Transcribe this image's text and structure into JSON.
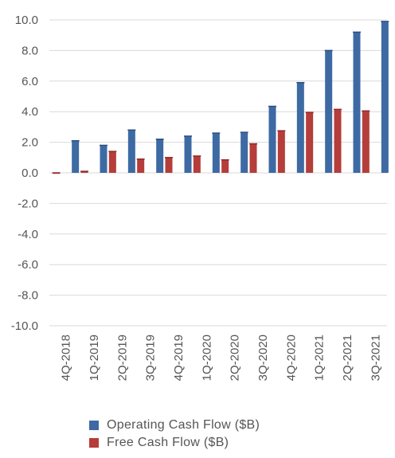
{
  "chart_data": {
    "type": "bar",
    "categories": [
      "4Q-2018",
      "1Q-2019",
      "2Q-2019",
      "3Q-2019",
      "4Q-2019",
      "1Q-2020",
      "2Q-2020",
      "3Q-2020",
      "4Q-2020",
      "1Q-2021",
      "2Q-2021",
      "3Q-2021"
    ],
    "series": [
      {
        "name": "Operating Cash Flow ($B)",
        "color": "#3d6aa3",
        "values": [
          2.1,
          1.8,
          2.8,
          2.2,
          2.4,
          2.6,
          2.65,
          4.35,
          5.9,
          8.0,
          9.2,
          9.9
        ]
      },
      {
        "name": "Free Cash Flow ($B)",
        "color": "#b53d3a",
        "values": [
          0.0,
          0.1,
          1.4,
          0.9,
          1.0,
          1.1,
          0.85,
          1.9,
          2.75,
          3.95,
          4.15,
          4.05
        ]
      }
    ],
    "ylim": [
      -10,
      10
    ],
    "yticks": [
      "10.0",
      "8.0",
      "6.0",
      "4.0",
      "2.0",
      "0.0",
      "-2.0",
      "-4.0",
      "-6.0",
      "-8.0",
      "-10.0"
    ],
    "ytick_values": [
      10,
      8,
      6,
      4,
      2,
      0,
      -2,
      -4,
      -6,
      -8,
      -10
    ],
    "grid": true,
    "legend_position": "bottom"
  }
}
